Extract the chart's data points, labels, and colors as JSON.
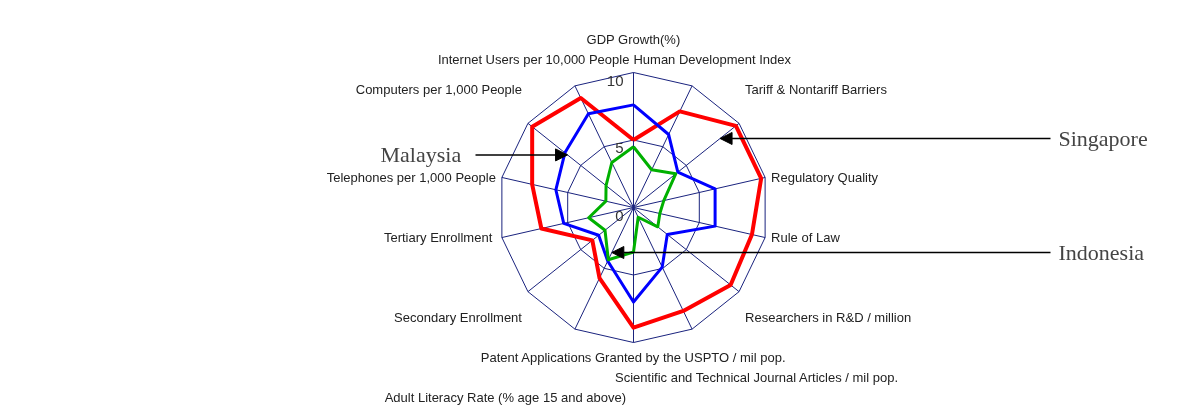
{
  "chart_data": {
    "type": "radar",
    "categories": [
      "GDP Growth(%)",
      "Human Development Index",
      "Tariff & Nontariff Barriers",
      "Regulatory Quality",
      "Rule of Law",
      "Researchers in R&D / million",
      "Scientific and Technical Journal Articles / mil pop.",
      "Patent Applications Granted by the USPTO / mil pop.",
      "Adult Literacy Rate (% age 15 and above)",
      "Secondary Enrollment",
      "Tertiary  Enrollment",
      "Telephones per 1,000 People",
      "Computers per 1,000 People",
      "Internet Users per 10,000 People"
    ],
    "series": [
      {
        "name": "Singapore",
        "color": "#ff0000",
        "values": [
          5.0,
          7.9,
          9.7,
          9.7,
          9.0,
          9.2,
          8.5,
          8.9,
          5.8,
          3.9,
          7.0,
          7.7,
          9.6,
          9.0
        ]
      },
      {
        "name": "Malaysia",
        "color": "#0000ff",
        "values": [
          7.6,
          6.0,
          4.2,
          6.2,
          6.2,
          3.2,
          4.9,
          7.0,
          4.4,
          3.3,
          5.3,
          5.9,
          6.5,
          7.7
        ]
      },
      {
        "name": "Indonesia",
        "color": "#00b000",
        "values": [
          4.5,
          3.1,
          4.0,
          2.3,
          2.0,
          2.3,
          0.8,
          3.3,
          4.3,
          2.7,
          3.4,
          2.1,
          2.6,
          3.7
        ]
      }
    ],
    "ylim": [
      0,
      10
    ],
    "yticks": [
      0,
      5,
      10
    ],
    "grid": true,
    "legend": false
  }
}
